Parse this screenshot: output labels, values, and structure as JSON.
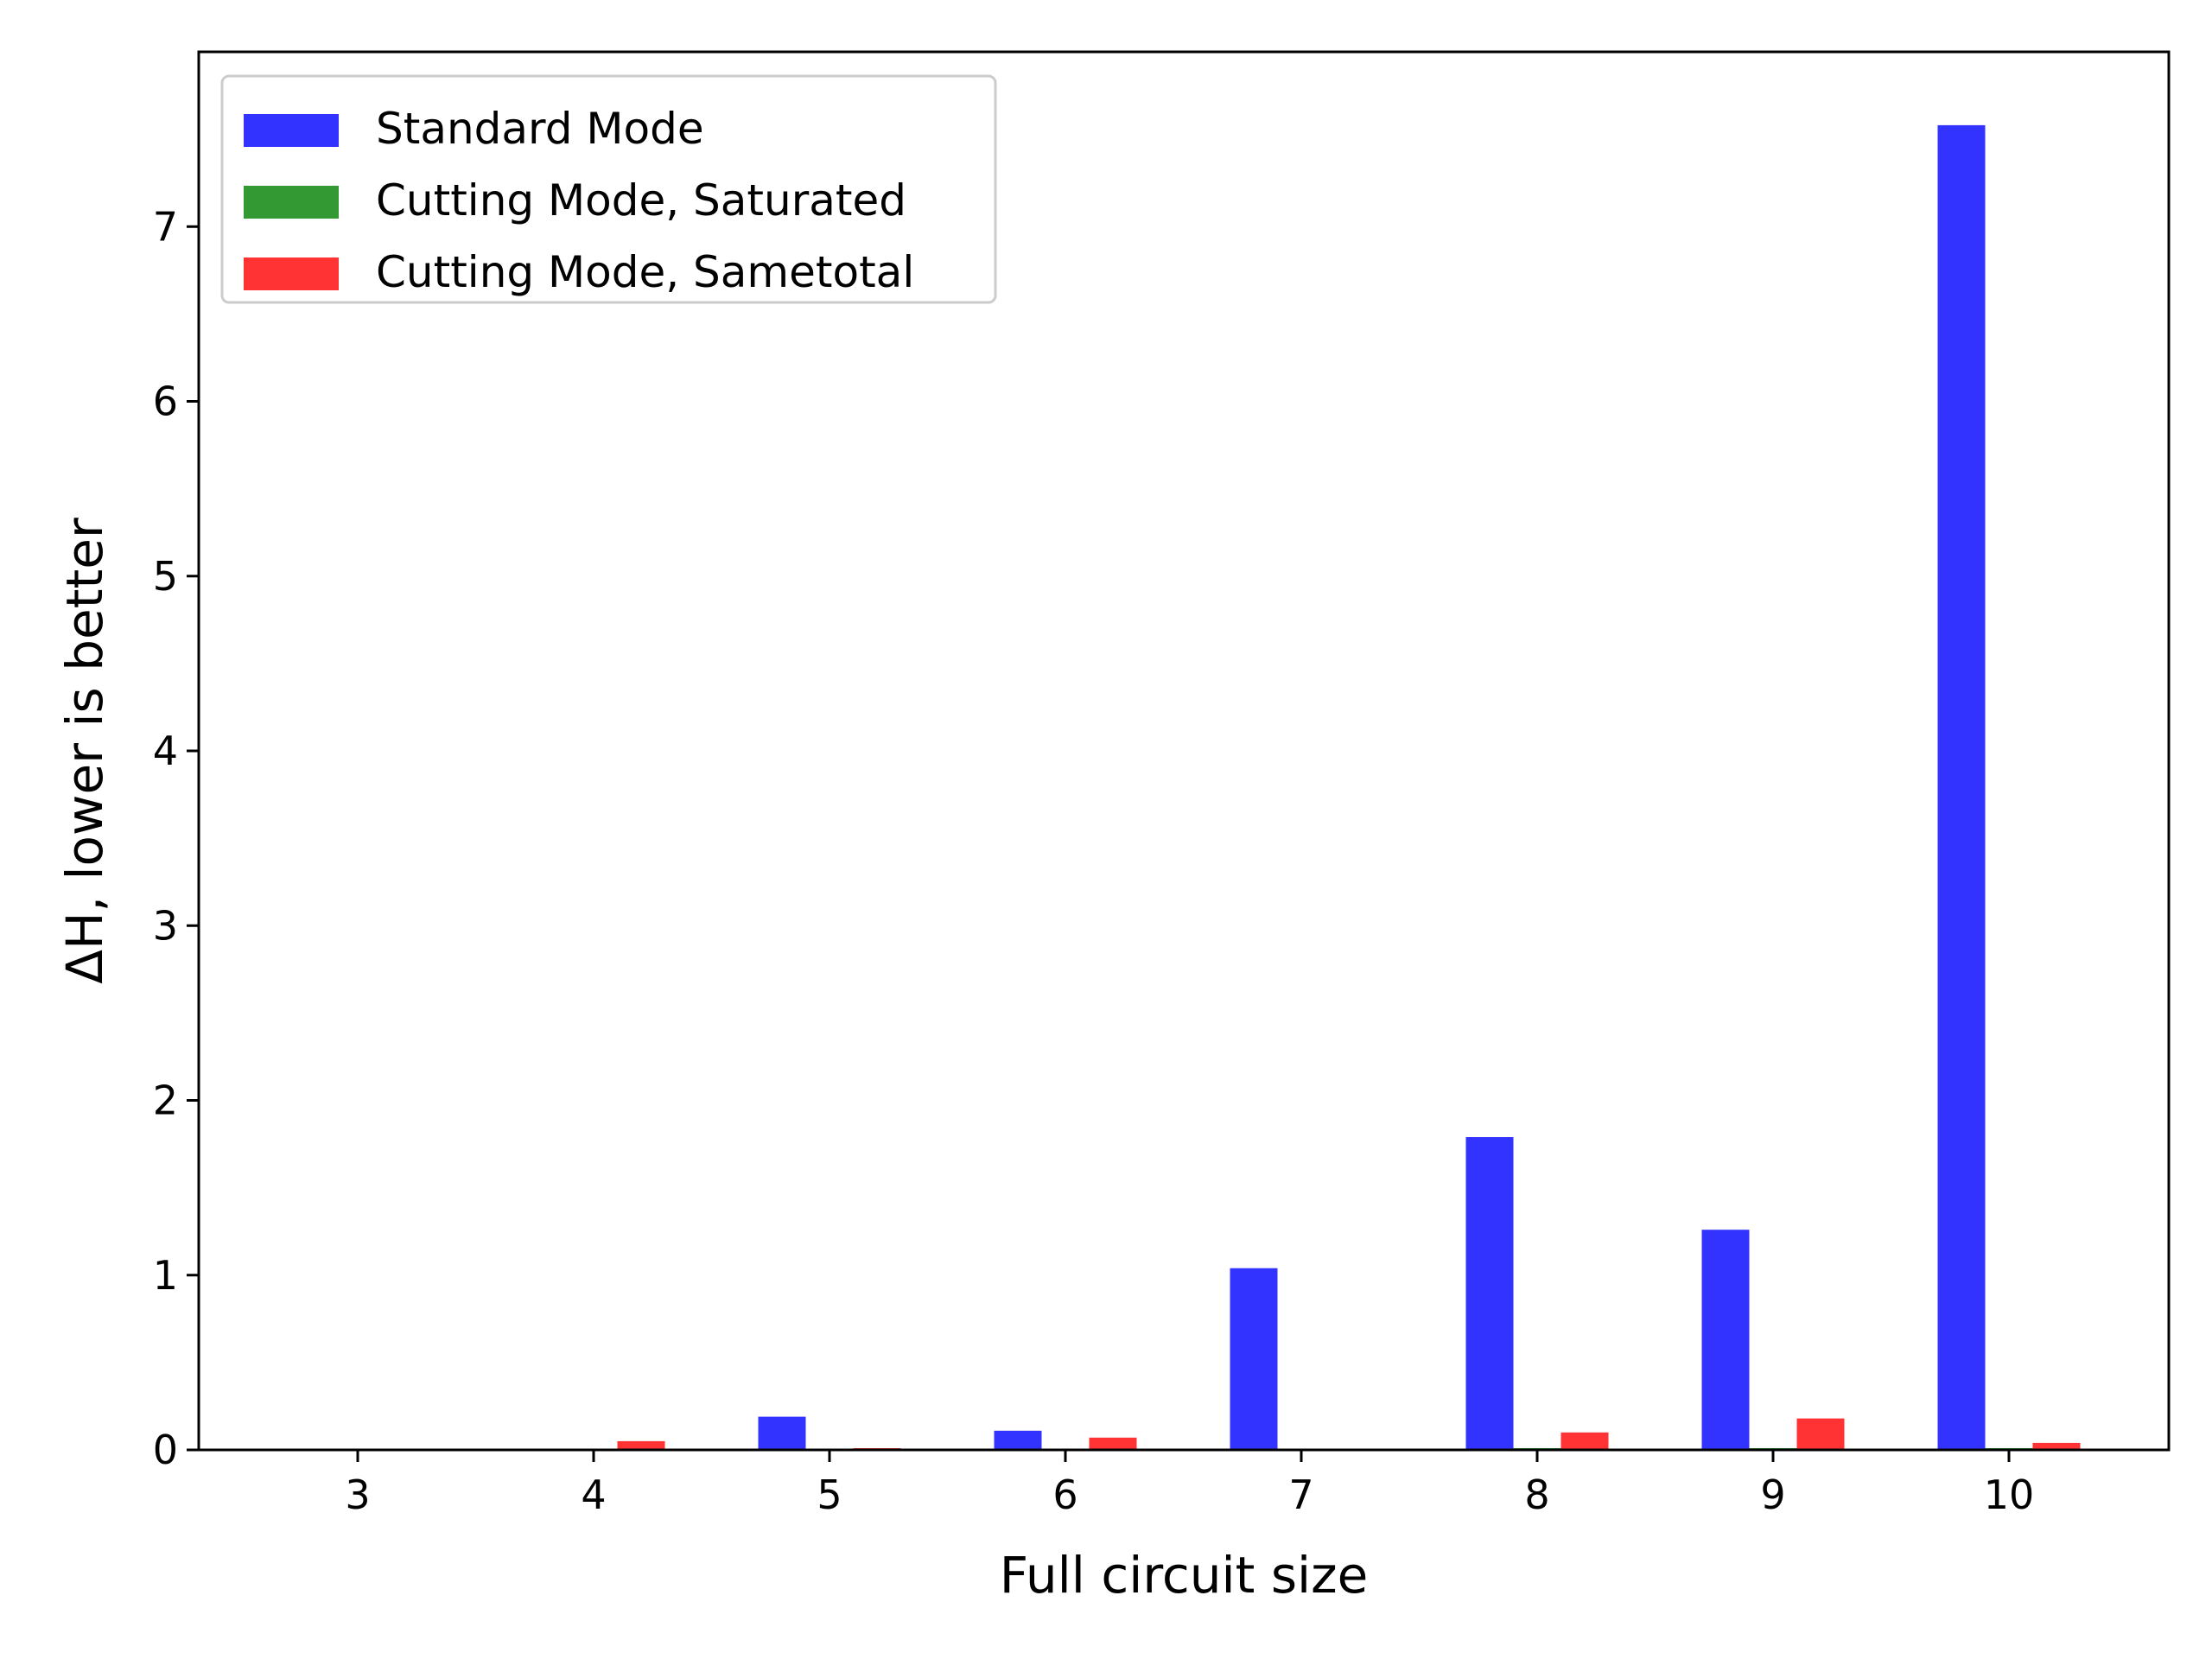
{
  "chart_data": {
    "type": "bar",
    "title": "",
    "xlabel": "Full circuit size",
    "ylabel": "ΔH, lower is better",
    "categories": [
      "3",
      "4",
      "5",
      "6",
      "7",
      "8",
      "9",
      "10"
    ],
    "ylim": [
      0,
      8
    ],
    "yticks": [
      0,
      1,
      2,
      3,
      4,
      5,
      6,
      7
    ],
    "grid": false,
    "legend_position": "top-left",
    "series": [
      {
        "name": "Standard Mode",
        "color": "#3333ff",
        "values": [
          0,
          0,
          0.19,
          0.11,
          1.04,
          1.79,
          1.26,
          7.58
        ]
      },
      {
        "name": "Cutting Mode, Saturated",
        "color": "#339933",
        "values": [
          0,
          0,
          0,
          0,
          0,
          0.01,
          0.01,
          0.01
        ]
      },
      {
        "name": "Cutting Mode, Sametotal",
        "color": "#ff3333",
        "values": [
          0,
          0.05,
          0.01,
          0.07,
          0,
          0.1,
          0.18,
          0.04
        ]
      }
    ]
  }
}
